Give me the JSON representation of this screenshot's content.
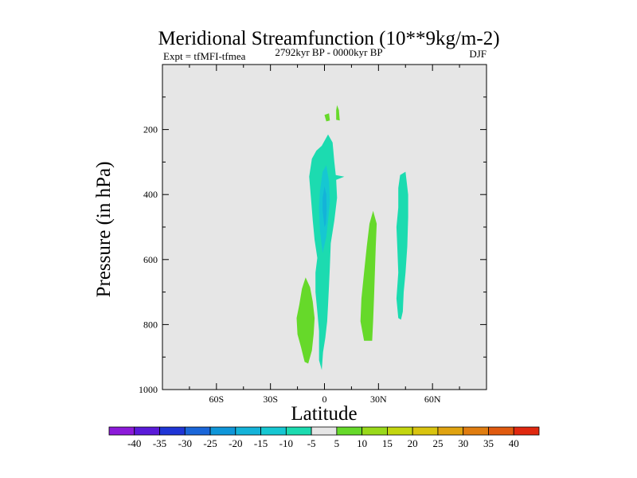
{
  "chart_data": {
    "type": "contour",
    "title": "Meridional Streamfunction (10**9kg/m-2)",
    "left_subtitle": "Expt = tfMFI-tfmea",
    "center_subtitle": "2792kyr BP - 0000kyr BP",
    "right_subtitle": "DJF",
    "xlabel": "Latitude",
    "ylabel": "Pressure (in hPa)",
    "xlim": [
      -90,
      90
    ],
    "ylim": [
      1000,
      0
    ],
    "x_ticks": [
      {
        "value": -60,
        "label": "60S"
      },
      {
        "value": -30,
        "label": "30S"
      },
      {
        "value": 0,
        "label": "0"
      },
      {
        "value": 30,
        "label": "30N"
      },
      {
        "value": 60,
        "label": "60N"
      }
    ],
    "y_ticks": [
      {
        "value": 200,
        "label": "200"
      },
      {
        "value": 400,
        "label": "400"
      },
      {
        "value": 600,
        "label": "600"
      },
      {
        "value": 800,
        "label": "800"
      },
      {
        "value": 1000,
        "label": "1000"
      }
    ],
    "background_color": "#e6e6e6",
    "colorbar": {
      "labels": [
        "-40",
        "-35",
        "-30",
        "-25",
        "-20",
        "-15",
        "-10",
        "-5",
        "5",
        "10",
        "15",
        "20",
        "25",
        "30",
        "35",
        "40"
      ],
      "colors": [
        "#8c1ad9",
        "#5a1ad9",
        "#1f35d6",
        "#1a66d9",
        "#0f96d9",
        "#14b3d9",
        "#16c7d2",
        "#1cdbb0",
        "#e6e6e6",
        "#66d92a",
        "#99d91a",
        "#c3d60f",
        "#d9c40f",
        "#e0a310",
        "#e07d10",
        "#e05a0f",
        "#e0280f"
      ]
    },
    "regions": [
      {
        "level": "-5",
        "color": "#1cdbb0",
        "points": [
          [
            -3,
            910
          ],
          [
            -3,
            880
          ],
          [
            -3,
            820
          ],
          [
            -4,
            760
          ],
          [
            -5,
            700
          ],
          [
            -5,
            640
          ],
          [
            -4,
            595
          ],
          [
            -5.5,
            540
          ],
          [
            -6.5,
            480
          ],
          [
            -7.5,
            410
          ],
          [
            -8.5,
            345
          ],
          [
            -7,
            290
          ],
          [
            -4.5,
            265
          ],
          [
            -1.5,
            250
          ],
          [
            2,
            215
          ],
          [
            4.5,
            240
          ],
          [
            5.5,
            300
          ],
          [
            6.3,
            340
          ],
          [
            11,
            345
          ],
          [
            6.5,
            355
          ],
          [
            7,
            410
          ],
          [
            5.5,
            480
          ],
          [
            3.5,
            550
          ],
          [
            3,
            620
          ],
          [
            2.5,
            680
          ],
          [
            2,
            740
          ],
          [
            1.5,
            790
          ],
          [
            0.5,
            840
          ],
          [
            -0.8,
            885
          ],
          [
            -1.5,
            940
          ]
        ]
      },
      {
        "level": "-5",
        "color": "#1cdbb0",
        "points": [
          [
            41,
            780
          ],
          [
            40,
            720
          ],
          [
            41,
            640
          ],
          [
            40.5,
            570
          ],
          [
            40,
            500
          ],
          [
            41,
            440
          ],
          [
            41,
            380
          ],
          [
            42,
            340
          ],
          [
            45,
            330
          ],
          [
            46.5,
            400
          ],
          [
            46.5,
            470
          ],
          [
            46,
            560
          ],
          [
            45,
            640
          ],
          [
            44,
            700
          ],
          [
            43.5,
            760
          ],
          [
            42.5,
            785
          ]
        ]
      },
      {
        "level": "-10",
        "color": "#16c7d2",
        "points": [
          [
            -1,
            580
          ],
          [
            -2.5,
            510
          ],
          [
            -3,
            440
          ],
          [
            -2.5,
            390
          ],
          [
            -1,
            330
          ],
          [
            1,
            310
          ],
          [
            2.5,
            360
          ],
          [
            3,
            420
          ],
          [
            2,
            480
          ],
          [
            1,
            530
          ]
        ]
      },
      {
        "level": "-15",
        "color": "#14b3d9",
        "points": [
          [
            0,
            500
          ],
          [
            -1,
            450
          ],
          [
            -1,
            410
          ],
          [
            0,
            375
          ],
          [
            1,
            400
          ],
          [
            1.2,
            450
          ],
          [
            0.8,
            490
          ]
        ]
      },
      {
        "level": "5",
        "color": "#66d92a",
        "points": [
          [
            -11,
            915
          ],
          [
            -13,
            870
          ],
          [
            -15,
            830
          ],
          [
            -15.5,
            780
          ],
          [
            -14,
            740
          ],
          [
            -12.5,
            690
          ],
          [
            -10.5,
            655
          ],
          [
            -8,
            685
          ],
          [
            -6.5,
            730
          ],
          [
            -5.5,
            780
          ],
          [
            -6,
            830
          ],
          [
            -7,
            880
          ],
          [
            -9,
            920
          ]
        ]
      },
      {
        "level": "5",
        "color": "#66d92a",
        "points": [
          [
            22,
            850
          ],
          [
            20,
            790
          ],
          [
            20.5,
            720
          ],
          [
            22,
            640
          ],
          [
            23.5,
            560
          ],
          [
            25,
            490
          ],
          [
            27,
            450
          ],
          [
            29,
            490
          ],
          [
            28.5,
            560
          ],
          [
            28,
            640
          ],
          [
            27.5,
            720
          ],
          [
            27,
            790
          ],
          [
            26.5,
            850
          ]
        ]
      },
      {
        "level": "5",
        "color": "#66d92a",
        "points": [
          [
            6.5,
            170
          ],
          [
            6.5,
            140
          ],
          [
            7,
            125
          ],
          [
            8,
            140
          ],
          [
            8.5,
            172
          ]
        ]
      },
      {
        "level": "5",
        "color": "#66d92a",
        "points": [
          [
            1,
            175
          ],
          [
            0,
            155
          ],
          [
            2.5,
            150
          ],
          [
            3,
            172
          ]
        ]
      }
    ]
  }
}
